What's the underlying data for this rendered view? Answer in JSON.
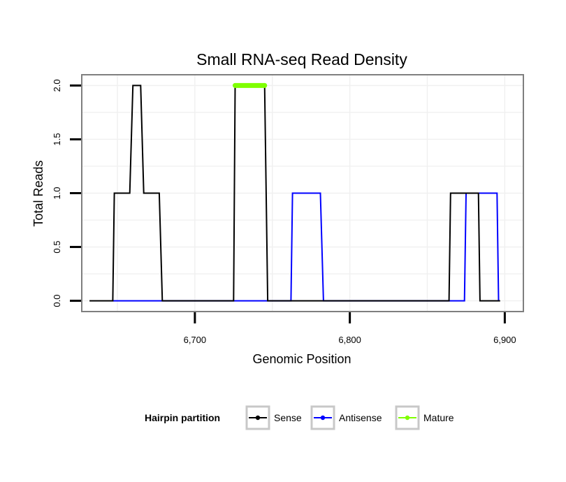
{
  "chart_data": {
    "type": "line",
    "title": "Small RNA-seq Read Density",
    "xlabel": "Genomic Position",
    "ylabel": "Total Reads",
    "xlim": [
      6627,
      6912
    ],
    "ylim": [
      -0.1,
      2.1
    ],
    "x_ticks": [
      6700,
      6800,
      6900
    ],
    "x_tick_labels": [
      "6,700",
      "6,800",
      "6,900"
    ],
    "y_ticks": [
      0,
      0.5,
      1,
      1.5,
      2
    ],
    "y_tick_labels": [
      "0.0",
      "0.5",
      "1.0",
      "1.5",
      "2.0"
    ],
    "grid": true,
    "legend": {
      "title": "Hairpin partition",
      "position": "bottom",
      "entries": [
        "Sense",
        "Antisense",
        "Mature"
      ]
    },
    "series": [
      {
        "name": "Antisense",
        "color": "#0000ff",
        "x": [
          6647,
          6679,
          6762,
          6763,
          6781,
          6783,
          6874,
          6875,
          6895,
          6896
        ],
        "y": [
          0,
          0,
          0,
          1,
          1,
          0,
          0,
          1,
          1,
          0
        ]
      },
      {
        "name": "Sense",
        "color": "#000000",
        "x": [
          6632,
          6647,
          6648,
          6658,
          6660,
          6665,
          6667,
          6677,
          6679,
          6725,
          6726,
          6745,
          6747,
          6864,
          6865,
          6883,
          6884,
          6897
        ],
        "y": [
          0,
          0,
          1,
          1,
          2,
          2,
          1,
          1,
          0,
          0,
          2,
          2,
          0,
          0,
          1,
          1,
          0,
          0
        ]
      },
      {
        "name": "Mature",
        "color": "#7fff00",
        "x": [
          6726,
          6745
        ],
        "y": [
          2,
          2
        ]
      }
    ]
  }
}
